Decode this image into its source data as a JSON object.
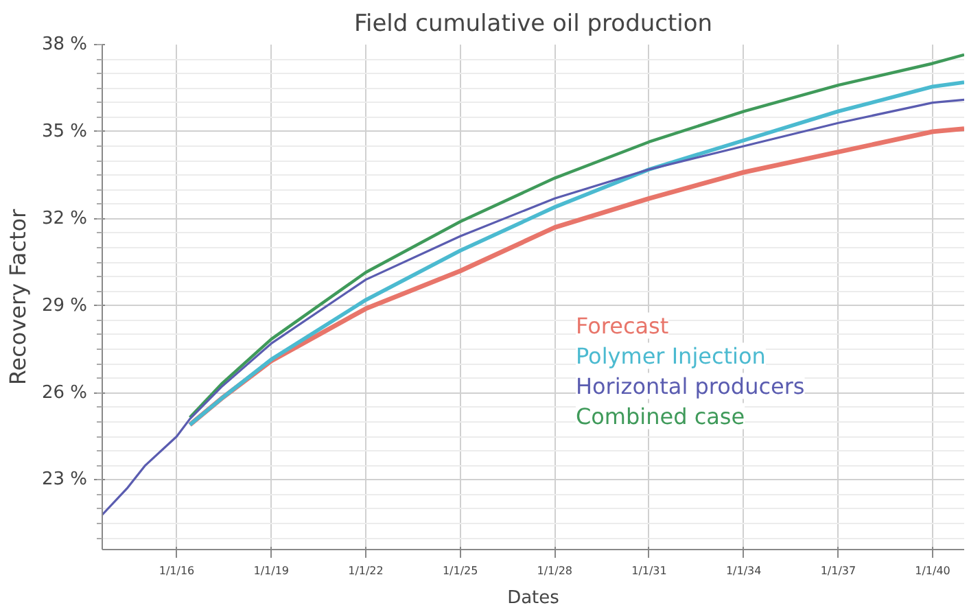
{
  "chart_data": {
    "type": "line",
    "title": "Field cumulative oil production",
    "xlabel": "Dates",
    "ylabel": "Recovery Factor",
    "x": [
      "2013-08-20",
      "2014-06-01",
      "2015-01-01",
      "2016-01-01",
      "2016-06-01",
      "2017-06-01",
      "2019-01-01",
      "2022-01-01",
      "2025-01-01",
      "2028-01-01",
      "2031-01-01",
      "2034-01-01",
      "2037-01-01",
      "2040-01-01",
      "2041-01-01"
    ],
    "series": [
      {
        "name": "Forecast",
        "color": "#e8756a",
        "values": [
          null,
          null,
          null,
          null,
          24.9,
          25.8,
          27.1,
          28.9,
          30.2,
          31.7,
          32.7,
          33.6,
          34.3,
          35.0,
          35.1
        ]
      },
      {
        "name": "Polymer Injection",
        "color": "#4bbad0",
        "values": [
          null,
          null,
          null,
          null,
          24.9,
          25.8,
          27.15,
          29.2,
          30.9,
          32.4,
          33.7,
          34.7,
          35.7,
          36.55,
          36.7
        ]
      },
      {
        "name": "Horizontal producers",
        "color": "#5a5cb0",
        "values": [
          21.8,
          22.7,
          23.5,
          24.5,
          25.1,
          26.2,
          27.7,
          29.9,
          31.4,
          32.7,
          33.7,
          34.5,
          35.3,
          36.0,
          36.1
        ]
      },
      {
        "name": "Combined case",
        "color": "#3f9a5a",
        "values": [
          null,
          null,
          null,
          null,
          25.15,
          26.3,
          27.85,
          30.15,
          31.9,
          33.4,
          34.65,
          35.7,
          36.6,
          37.35,
          37.65
        ]
      }
    ],
    "xlim": [
      "2013-08-20",
      "2041-01-01"
    ],
    "xticks": [
      {
        "value": "2016-01-01",
        "label": "1/1/16"
      },
      {
        "value": "2019-01-01",
        "label": "1/1/19"
      },
      {
        "value": "2022-01-01",
        "label": "1/1/22"
      },
      {
        "value": "2025-01-01",
        "label": "1/1/25"
      },
      {
        "value": "2028-01-01",
        "label": "1/1/28"
      },
      {
        "value": "2031-01-01",
        "label": "1/1/31"
      },
      {
        "value": "2034-01-01",
        "label": "1/1/34"
      },
      {
        "value": "2037-01-01",
        "label": "1/1/37"
      },
      {
        "value": "2040-01-01",
        "label": "1/1/40"
      }
    ],
    "ylim": [
      20.6,
      38
    ],
    "yticks": [
      {
        "value": 23,
        "label": "23 %"
      },
      {
        "value": 26,
        "label": "26 %"
      },
      {
        "value": 29,
        "label": "29 %"
      },
      {
        "value": 32,
        "label": "32 %"
      },
      {
        "value": 35,
        "label": "35 %"
      },
      {
        "value": 38,
        "label": "38 %"
      }
    ],
    "grid": true,
    "legend": "bottom right",
    "marker": "none",
    "line_style": "solid"
  }
}
